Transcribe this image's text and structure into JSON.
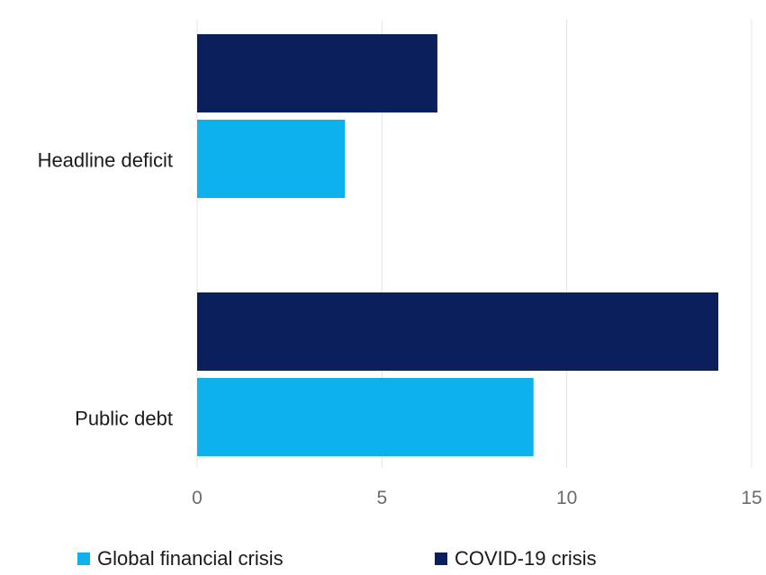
{
  "chart_data": {
    "type": "bar",
    "orientation": "horizontal",
    "categories": [
      "Headline deficit",
      "Public debt"
    ],
    "series": [
      {
        "name": "COVID-19 crisis",
        "values": [
          6.5,
          14.1
        ],
        "color": "#0b1f5c"
      },
      {
        "name": "Global financial crisis",
        "values": [
          4.0,
          9.1
        ],
        "color": "#0db2ed"
      }
    ],
    "xlim": [
      0,
      15
    ],
    "xticks": [
      "0",
      "5",
      "10",
      "15"
    ],
    "grid": true,
    "legend_position": "bottom",
    "legend_order": [
      "Global financial crisis",
      "COVID-19 crisis"
    ]
  }
}
